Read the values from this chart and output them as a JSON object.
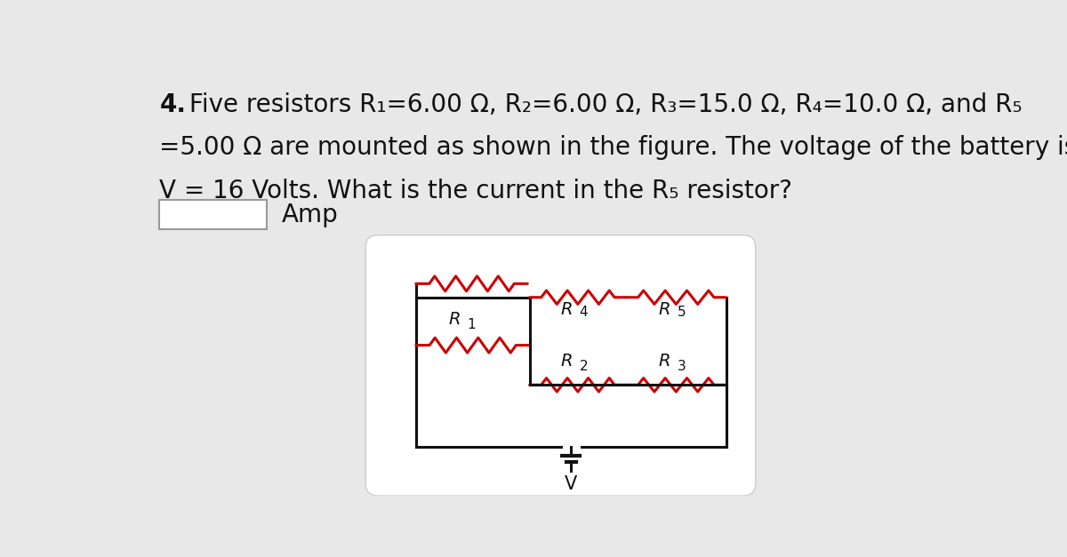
{
  "title_bold": "4.",
  "title_line1_rest": " Five resistors R₁=6.00 Ω, R₂=6.00 Ω, R₃=15.0 Ω, R₄=10.0 Ω, and R₅",
  "title_line2": "=5.00 Ω are mounted as shown in the figure. The voltage of the battery is",
  "title_line3": "V = 16 Volts. What is the current in the R₅ resistor?",
  "answer_label": "Amp",
  "bg_color": "#e8e8e8",
  "panel_color": "#ffffff",
  "resistor_color": "#cc0000",
  "wire_color": "#111111",
  "text_color": "#111111",
  "font_size_title": 20,
  "font_size_label": 14
}
